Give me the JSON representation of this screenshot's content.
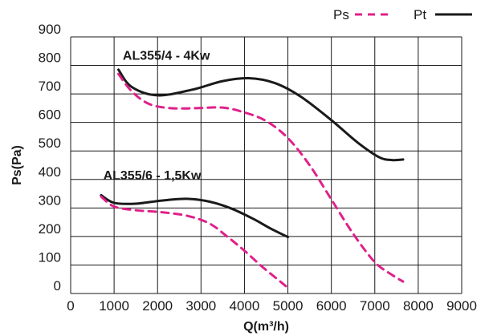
{
  "chart_data": {
    "type": "line",
    "xlabel": "Q(m³/h)",
    "ylabel": "Ps(Pa)",
    "xlim": [
      0,
      9000
    ],
    "ylim": [
      0,
      900
    ],
    "x_ticks": [
      "0",
      "1000",
      "2000",
      "3000",
      "4000",
      "5000",
      "6000",
      "7000",
      "8000",
      "9000"
    ],
    "y_ticks": [
      "0",
      "100",
      "200",
      "300",
      "400",
      "500",
      "600",
      "700",
      "800",
      "900"
    ],
    "grid": true,
    "legend_position": "top-right",
    "legend": [
      {
        "label": "Ps",
        "style": "dashed",
        "color": "#e0218a"
      },
      {
        "label": "Pt",
        "style": "solid",
        "color": "#1a1a1a"
      }
    ],
    "annotations": [
      {
        "text": "AL355/4 - 4Kw",
        "x": 1200,
        "y": 820
      },
      {
        "text": "AL355/6 - 1,5Kw",
        "x": 750,
        "y": 400
      }
    ],
    "series": [
      {
        "group": "AL355/4 - 4Kw",
        "kind": "Pt",
        "color": "#1a1a1a",
        "dash": false,
        "x": [
          1100,
          1400,
          2000,
          2800,
          3500,
          4100,
          4700,
          5300,
          6000,
          6600,
          7100,
          7400,
          7650
        ],
        "y": [
          785,
          725,
          695,
          715,
          745,
          755,
          738,
          690,
          608,
          530,
          478,
          468,
          470
        ]
      },
      {
        "group": "AL355/4 - 4Kw",
        "kind": "Ps",
        "color": "#e0218a",
        "dash": true,
        "x": [
          1100,
          1400,
          1800,
          2300,
          2900,
          3500,
          4000,
          4500,
          5000,
          5500,
          6000,
          6500,
          7000,
          7400,
          7650
        ],
        "y": [
          770,
          710,
          665,
          650,
          650,
          652,
          635,
          605,
          545,
          450,
          330,
          210,
          110,
          65,
          42
        ]
      },
      {
        "group": "AL355/6 - 1,5Kw",
        "kind": "Pt",
        "color": "#1a1a1a",
        "dash": false,
        "x": [
          700,
          1000,
          1500,
          2100,
          2700,
          3200,
          3700,
          4200,
          4600,
          5000
        ],
        "y": [
          345,
          318,
          315,
          326,
          332,
          322,
          298,
          262,
          228,
          198
        ]
      },
      {
        "group": "AL355/6 - 1,5Kw",
        "kind": "Ps",
        "color": "#e0218a",
        "dash": true,
        "x": [
          700,
          1000,
          1500,
          2100,
          2700,
          3200,
          3600,
          4000,
          4400,
          4800,
          5000
        ],
        "y": [
          340,
          305,
          292,
          285,
          272,
          245,
          200,
          150,
          95,
          45,
          20
        ]
      }
    ]
  }
}
